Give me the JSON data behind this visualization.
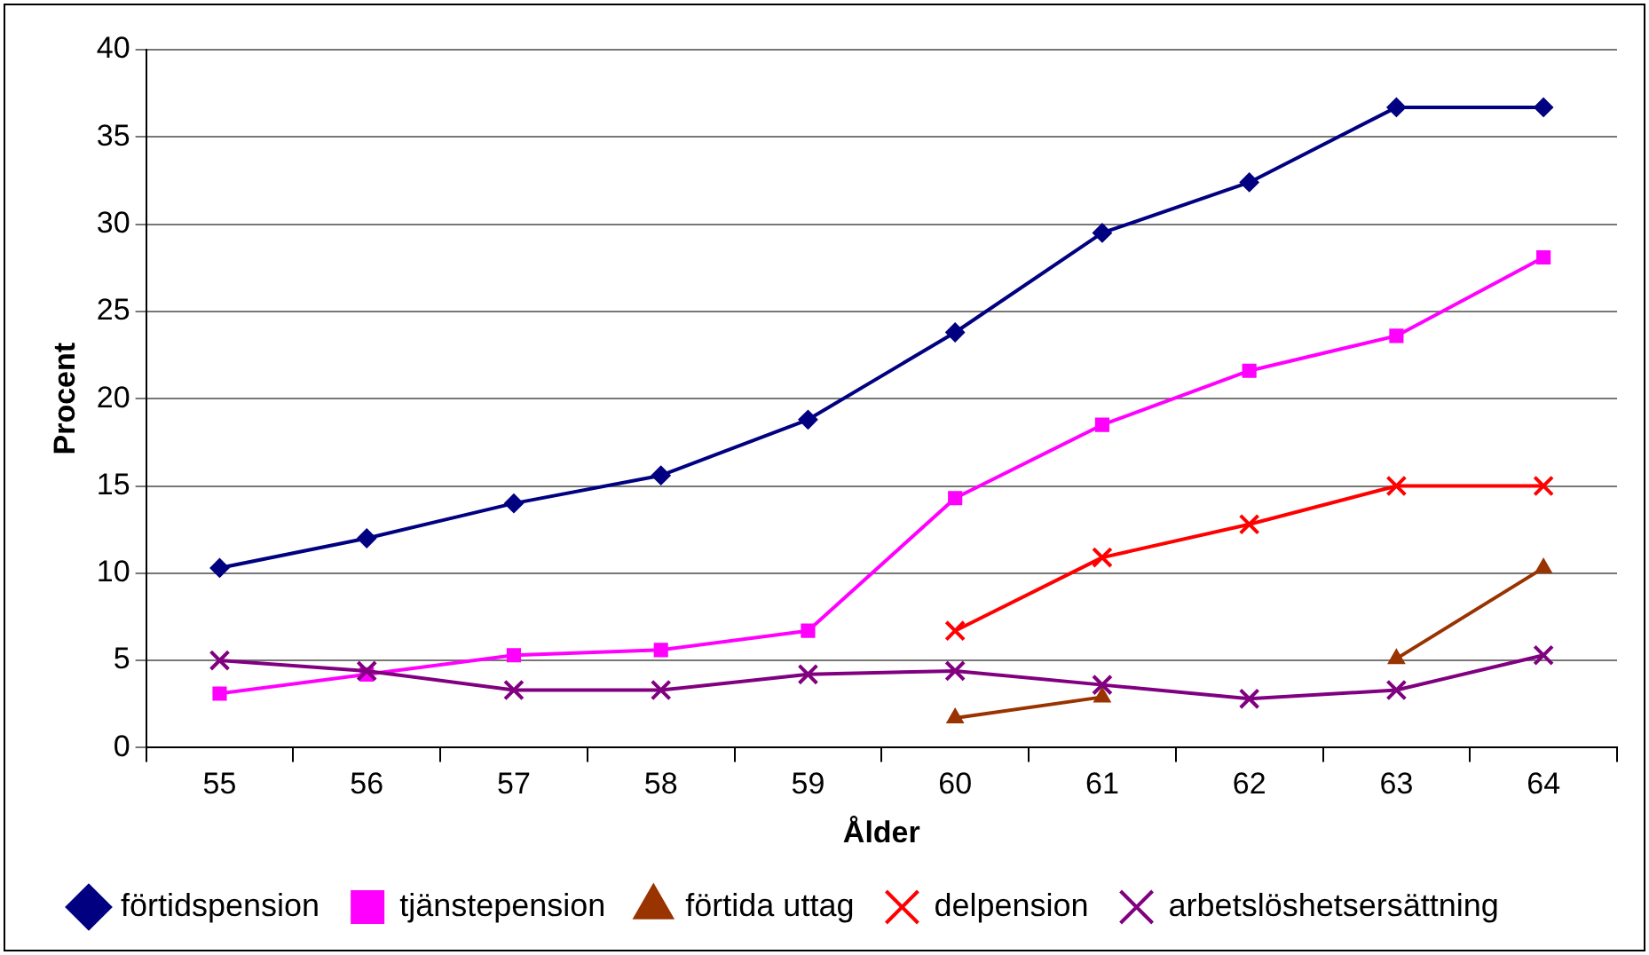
{
  "chart_data": {
    "type": "line",
    "xlabel": "Ålder",
    "ylabel": "Procent",
    "categories": [
      "55",
      "56",
      "57",
      "58",
      "59",
      "60",
      "61",
      "62",
      "63",
      "64"
    ],
    "ylim": [
      0,
      40
    ],
    "yticks": [
      0,
      5,
      10,
      15,
      20,
      25,
      30,
      35,
      40
    ],
    "grid": "y",
    "legend": "bottom",
    "line_style": "solid",
    "series": [
      {
        "name": "förtidspension",
        "color": "#000080",
        "marker": "diamond",
        "values": [
          10.3,
          12,
          14,
          15.6,
          18.8,
          23.8,
          29.5,
          32.4,
          36.7,
          36.7
        ]
      },
      {
        "name": "tjänstepension",
        "color": "#ff00ff",
        "marker": "square",
        "values": [
          3.1,
          4.2,
          5.3,
          5.6,
          6.7,
          14.3,
          18.5,
          21.6,
          23.6,
          28.1
        ]
      },
      {
        "name": "förtida uttag",
        "color": "#993300",
        "marker": "triangle",
        "values": [
          null,
          null,
          null,
          null,
          null,
          1.7,
          2.9,
          null,
          5.1,
          10.3
        ]
      },
      {
        "name": "delpension",
        "color": "#ff0000",
        "marker": "cross",
        "values": [
          null,
          null,
          null,
          null,
          null,
          6.7,
          10.9,
          12.8,
          15,
          15
        ]
      },
      {
        "name": "arbetslöshetsersättning",
        "color": "#800080",
        "marker": "cross",
        "values": [
          5,
          4.4,
          3.3,
          3.3,
          4.2,
          4.4,
          3.6,
          2.8,
          3.3,
          5.3
        ]
      }
    ]
  }
}
